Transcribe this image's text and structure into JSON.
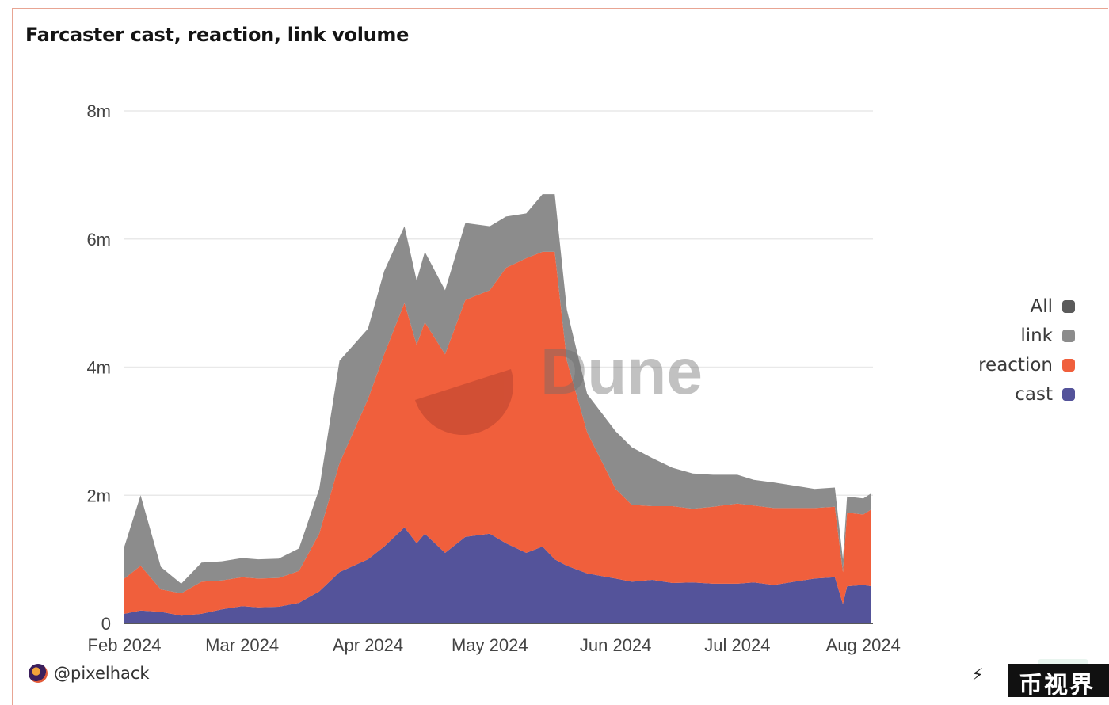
{
  "title": "Farcaster cast, reaction, link volume",
  "watermark": "Dune",
  "author": "@pixelhack",
  "corner_badge": "币视界",
  "icons": {
    "avatar": "avatar-icon",
    "share": "plug-icon"
  },
  "colors": {
    "all": "#5b5b5b",
    "link": "#8c8c8c",
    "reaction": "#f05f3c",
    "cast": "#54539a",
    "grid": "#e9e9e9"
  },
  "chart_data": {
    "type": "area",
    "stacked": true,
    "title": "Farcaster cast, reaction, link volume",
    "x_ticks": [
      "Feb 2024",
      "Mar 2024",
      "Apr 2024",
      "May 2024",
      "Jun 2024",
      "Jul 2024",
      "Aug 2024"
    ],
    "y_ticks": [
      "0",
      "2m",
      "4m",
      "6m",
      "8m"
    ],
    "ylim": [
      0,
      8400000
    ],
    "legend_placement": "right",
    "legend": [
      "All",
      "link",
      "reaction",
      "cast"
    ],
    "x": [
      "Feb 1",
      "Feb 5",
      "Feb 10",
      "Feb 15",
      "Feb 20",
      "Feb 25",
      "Mar 1",
      "Mar 5",
      "Mar 10",
      "Mar 15",
      "Mar 20",
      "Mar 25",
      "Apr 1",
      "Apr 5",
      "Apr 10",
      "Apr 13",
      "Apr 15",
      "Apr 20",
      "Apr 25",
      "May 1",
      "May 5",
      "May 10",
      "May 14",
      "May 17",
      "May 20",
      "May 25",
      "Jun 1",
      "Jun 5",
      "Jun 10",
      "Jun 15",
      "Jun 20",
      "Jun 25",
      "Jul 1",
      "Jul 5",
      "Jul 10",
      "Jul 15",
      "Jul 20",
      "Jul 25",
      "Jul 27",
      "Jul 28",
      "Aug 1",
      "Aug 3"
    ],
    "series": [
      {
        "name": "cast",
        "values": [
          150000,
          200000,
          180000,
          120000,
          150000,
          220000,
          270000,
          250000,
          260000,
          320000,
          500000,
          800000,
          1000000,
          1200000,
          1500000,
          1250000,
          1400000,
          1100000,
          1350000,
          1400000,
          1250000,
          1100000,
          1200000,
          1000000,
          900000,
          780000,
          700000,
          650000,
          680000,
          630000,
          640000,
          620000,
          620000,
          640000,
          600000,
          650000,
          700000,
          720000,
          300000,
          580000,
          600000,
          580000
        ]
      },
      {
        "name": "reaction",
        "values": [
          550000,
          700000,
          350000,
          350000,
          500000,
          450000,
          450000,
          450000,
          450000,
          500000,
          900000,
          1700000,
          2500000,
          3000000,
          3500000,
          3100000,
          3300000,
          3100000,
          3700000,
          3800000,
          4300000,
          4600000,
          4600000,
          4800000,
          3200000,
          2200000,
          1400000,
          1200000,
          1150000,
          1200000,
          1150000,
          1200000,
          1250000,
          1200000,
          1200000,
          1150000,
          1100000,
          1100000,
          500000,
          1150000,
          1100000,
          1200000
        ]
      },
      {
        "name": "link",
        "values": [
          500000,
          1100000,
          350000,
          150000,
          300000,
          300000,
          300000,
          300000,
          300000,
          350000,
          700000,
          1600000,
          1100000,
          1300000,
          1200000,
          1000000,
          1100000,
          1000000,
          1200000,
          1000000,
          800000,
          700000,
          900000,
          900000,
          800000,
          600000,
          900000,
          900000,
          750000,
          600000,
          550000,
          500000,
          450000,
          400000,
          400000,
          350000,
          300000,
          300000,
          200000,
          250000,
          250000,
          250000
        ]
      }
    ]
  }
}
